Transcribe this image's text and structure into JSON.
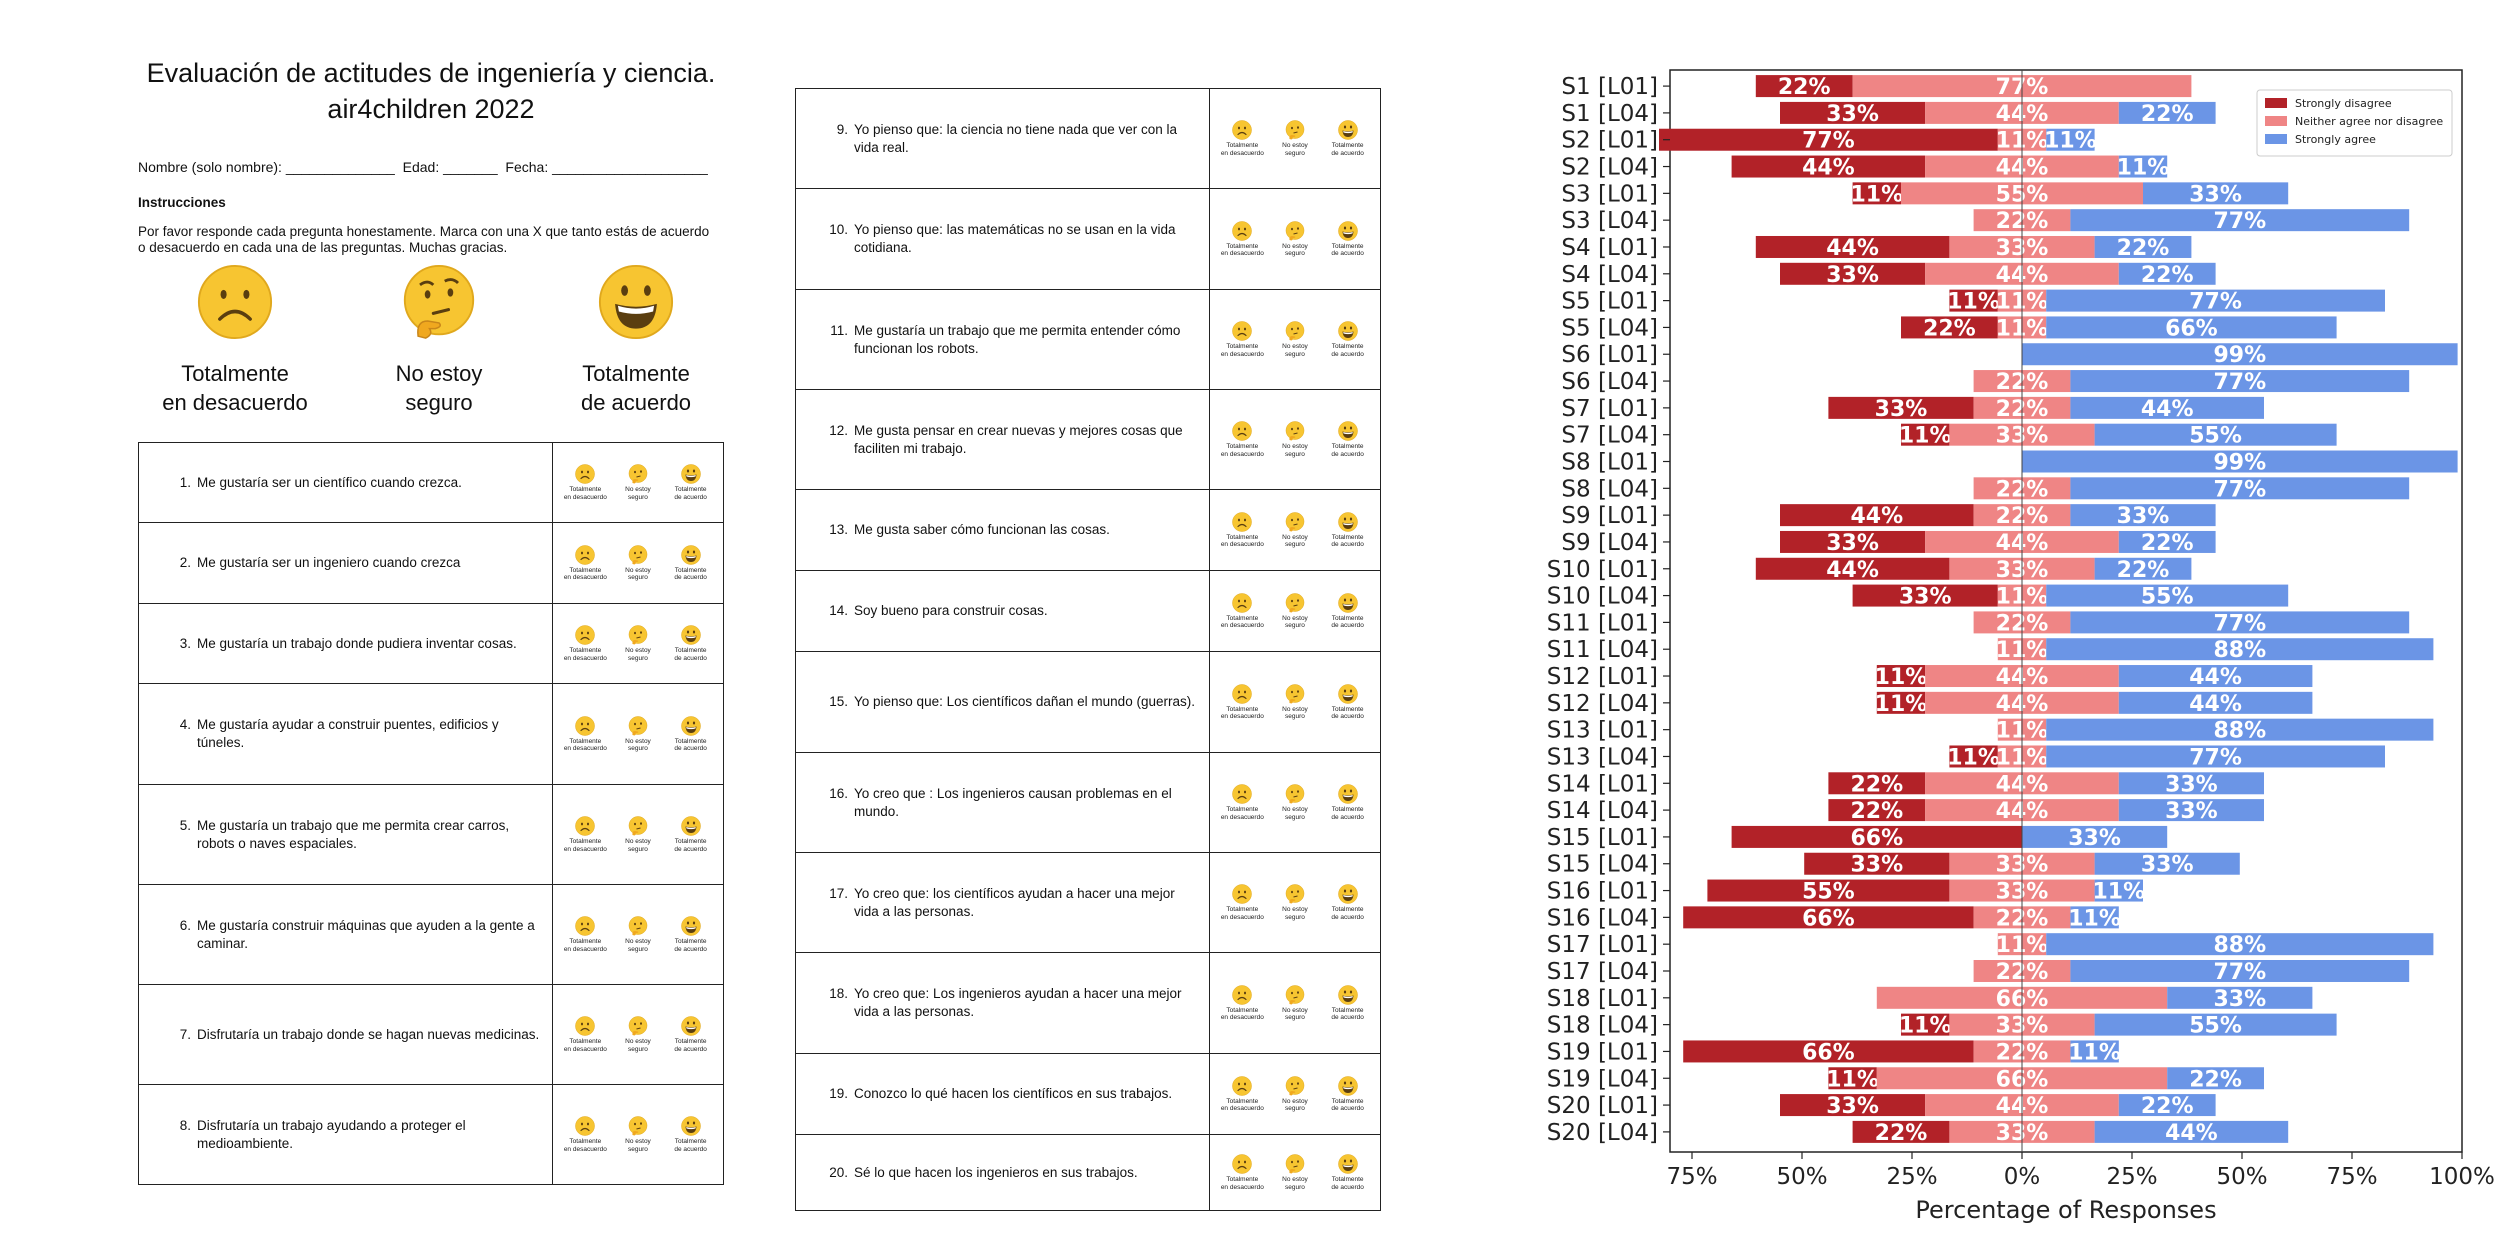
{
  "survey": {
    "title_line1": "Evaluación de actitudes de ingeniería y ciencia.",
    "title_line2": "air4children 2022",
    "fields": {
      "name_label": "Nombre (solo nombre):",
      "age_label": "Edad:",
      "date_label": "Fecha:",
      "blank_name": "______________",
      "blank_age": "_______",
      "blank_date": "____________________"
    },
    "instructions_heading": "Instrucciones",
    "instructions_text": "Por favor responde cada pregunta honestamente. Marca con una X que tanto estás de acuerdo o desacuerdo en cada una de las preguntas. Muchas gracias.",
    "scale": [
      {
        "icon": "frowning-face-icon",
        "label_line1": "Totalmente",
        "label_line2": "en desacuerdo"
      },
      {
        "icon": "thinking-face-icon",
        "label_line1": "No estoy",
        "label_line2": "seguro"
      },
      {
        "icon": "grinning-face-icon",
        "label_line1": "Totalmente",
        "label_line2": "de acuerdo"
      }
    ],
    "mini_scale": [
      {
        "line1": "Totalmente",
        "line2": "en desacuerdo"
      },
      {
        "line1": "No estoy",
        "line2": "seguro"
      },
      {
        "line1": "Totalmente",
        "line2": "de acuerdo"
      }
    ],
    "questions": [
      {
        "num": "1.",
        "text": "Me gustaría ser un científico cuando crezca."
      },
      {
        "num": "2.",
        "text": "Me gustaría ser un ingeniero cuando crezca"
      },
      {
        "num": "3.",
        "text": "Me gustaría un trabajo donde pudiera inventar cosas."
      },
      {
        "num": "4.",
        "text": "Me gustaría ayudar a construir puentes, edificios y túneles."
      },
      {
        "num": "5.",
        "text": "Me gustaría un trabajo que me permita crear carros, robots o naves espaciales."
      },
      {
        "num": "6.",
        "text": "Me gustaría construir  máquinas que ayuden a la gente a caminar."
      },
      {
        "num": "7.",
        "text": "Disfrutaría un trabajo donde se hagan nuevas medicinas."
      },
      {
        "num": "8.",
        "text": "Disfrutaría un trabajo ayudando a proteger el medioambiente."
      },
      {
        "num": "9.",
        "text": "Yo pienso que: la ciencia no tiene nada que ver con la vida real."
      },
      {
        "num": "10.",
        "text": "Yo pienso que: las matemáticas no se usan en la vida cotidiana."
      },
      {
        "num": "11.",
        "text": "Me gustaría  un trabajo que me permita entender cómo funcionan los robots."
      },
      {
        "num": "12.",
        "text": "Me gusta pensar en crear nuevas y mejores cosas que faciliten mi trabajo."
      },
      {
        "num": "13.",
        "text": "Me gusta saber cómo funcionan las cosas."
      },
      {
        "num": "14.",
        "text": "Soy bueno para construir cosas."
      },
      {
        "num": "15.",
        "text": "Yo pienso que: Los científicos dañan  el mundo (guerras)."
      },
      {
        "num": "16.",
        "text": " Yo creo que : Los ingenieros causan problemas en el mundo."
      },
      {
        "num": "17.",
        "text": "Yo creo que: los científicos ayudan a hacer una mejor vida a las personas."
      },
      {
        "num": "18.",
        "text": "Yo creo que: Los ingenieros ayudan a hacer una mejor vida a las personas."
      },
      {
        "num": "19.",
        "text": " Conozco lo qué hacen los científicos en sus trabajos."
      },
      {
        "num": "20.",
        "text": "Sé lo que hacen los ingenieros en sus trabajos."
      }
    ]
  },
  "chart_data": {
    "type": "bar",
    "orientation": "horizontal-diverging",
    "xlabel": "Percentage of Responses",
    "xlim": [
      -0.8,
      1.0
    ],
    "xticks": [
      {
        "value": -0.75,
        "label": "75%"
      },
      {
        "value": -0.5,
        "label": "50%"
      },
      {
        "value": -0.25,
        "label": "25%"
      },
      {
        "value": 0,
        "label": "0%"
      },
      {
        "value": 0.25,
        "label": "25%"
      },
      {
        "value": 0.5,
        "label": "50%"
      },
      {
        "value": 0.75,
        "label": "75%"
      },
      {
        "value": 1.0,
        "label": "100%"
      }
    ],
    "legend": {
      "position": "top-right",
      "entries": [
        {
          "name": "Strongly disagree",
          "color": "#b22228"
        },
        {
          "name": "Neither agree nor disagree",
          "color": "#ef8585"
        },
        {
          "name": "Strongly agree",
          "color": "#6b95e6"
        }
      ]
    },
    "colors": {
      "disagree": "#b22228",
      "neutral": "#ef8585",
      "agree": "#6b95e6",
      "label": "#ffffff"
    },
    "rows": [
      {
        "label": "S1 [L01]",
        "disagree": 22,
        "neutral": 77,
        "agree": 0
      },
      {
        "label": "S1 [L04]",
        "disagree": 33,
        "neutral": 44,
        "agree": 22
      },
      {
        "label": "S2 [L01]",
        "disagree": 77,
        "neutral": 11,
        "agree": 11
      },
      {
        "label": "S2 [L04]",
        "disagree": 44,
        "neutral": 44,
        "agree": 11
      },
      {
        "label": "S3 [L01]",
        "disagree": 11,
        "neutral": 55,
        "agree": 33
      },
      {
        "label": "S3 [L04]",
        "disagree": 0,
        "neutral": 22,
        "agree": 77
      },
      {
        "label": "S4 [L01]",
        "disagree": 44,
        "neutral": 33,
        "agree": 22
      },
      {
        "label": "S4 [L04]",
        "disagree": 33,
        "neutral": 44,
        "agree": 22
      },
      {
        "label": "S5 [L01]",
        "disagree": 11,
        "neutral": 11,
        "agree": 77
      },
      {
        "label": "S5 [L04]",
        "disagree": 22,
        "neutral": 11,
        "agree": 66
      },
      {
        "label": "S6 [L01]",
        "disagree": 0,
        "neutral": 0,
        "agree": 99
      },
      {
        "label": "S6 [L04]",
        "disagree": 0,
        "neutral": 22,
        "agree": 77
      },
      {
        "label": "S7 [L01]",
        "disagree": 33,
        "neutral": 22,
        "agree": 44
      },
      {
        "label": "S7 [L04]",
        "disagree": 11,
        "neutral": 33,
        "agree": 55
      },
      {
        "label": "S8 [L01]",
        "disagree": 0,
        "neutral": 0,
        "agree": 99
      },
      {
        "label": "S8 [L04]",
        "disagree": 0,
        "neutral": 22,
        "agree": 77
      },
      {
        "label": "S9 [L01]",
        "disagree": 44,
        "neutral": 22,
        "agree": 33
      },
      {
        "label": "S9 [L04]",
        "disagree": 33,
        "neutral": 44,
        "agree": 22
      },
      {
        "label": "S10 [L01]",
        "disagree": 44,
        "neutral": 33,
        "agree": 22
      },
      {
        "label": "S10 [L04]",
        "disagree": 33,
        "neutral": 11,
        "agree": 55
      },
      {
        "label": "S11 [L01]",
        "disagree": 0,
        "neutral": 22,
        "agree": 77
      },
      {
        "label": "S11 [L04]",
        "disagree": 0,
        "neutral": 11,
        "agree": 88
      },
      {
        "label": "S12 [L01]",
        "disagree": 11,
        "neutral": 44,
        "agree": 44
      },
      {
        "label": "S12 [L04]",
        "disagree": 11,
        "neutral": 44,
        "agree": 44
      },
      {
        "label": "S13 [L01]",
        "disagree": 0,
        "neutral": 11,
        "agree": 88
      },
      {
        "label": "S13 [L04]",
        "disagree": 11,
        "neutral": 11,
        "agree": 77
      },
      {
        "label": "S14 [L01]",
        "disagree": 22,
        "neutral": 44,
        "agree": 33
      },
      {
        "label": "S14 [L04]",
        "disagree": 22,
        "neutral": 44,
        "agree": 33
      },
      {
        "label": "S15 [L01]",
        "disagree": 66,
        "neutral": 0,
        "agree": 33
      },
      {
        "label": "S15 [L04]",
        "disagree": 33,
        "neutral": 33,
        "agree": 33
      },
      {
        "label": "S16 [L01]",
        "disagree": 55,
        "neutral": 33,
        "agree": 11
      },
      {
        "label": "S16 [L04]",
        "disagree": 66,
        "neutral": 22,
        "agree": 11
      },
      {
        "label": "S17 [L01]",
        "disagree": 0,
        "neutral": 11,
        "agree": 88
      },
      {
        "label": "S17 [L04]",
        "disagree": 0,
        "neutral": 22,
        "agree": 77
      },
      {
        "label": "S18 [L01]",
        "disagree": 0,
        "neutral": 66,
        "agree": 33
      },
      {
        "label": "S18 [L04]",
        "disagree": 11,
        "neutral": 33,
        "agree": 55
      },
      {
        "label": "S19 [L01]",
        "disagree": 66,
        "neutral": 22,
        "agree": 11
      },
      {
        "label": "S19 [L04]",
        "disagree": 11,
        "neutral": 66,
        "agree": 22
      },
      {
        "label": "S20 [L01]",
        "disagree": 33,
        "neutral": 44,
        "agree": 22
      },
      {
        "label": "S20 [L04]",
        "disagree": 22,
        "neutral": 33,
        "agree": 44
      }
    ]
  }
}
